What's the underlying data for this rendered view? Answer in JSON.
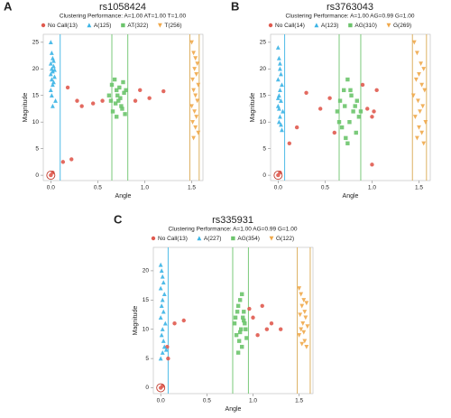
{
  "chart_data": [
    {
      "type": "scatter",
      "panel_label": "A",
      "title": "rs1058424",
      "subtitle": "Clustering Performance: A=1.00 AT=1.00 T=1.00",
      "x_label": "Angle",
      "y_label": "Magnitude",
      "xlim": [
        -0.08,
        1.62
      ],
      "ylim": [
        -1,
        26.5
      ],
      "xticks": [
        {
          "value": 0,
          "label": "0.0"
        },
        {
          "value": 0.5,
          "label": "0.5"
        },
        {
          "value": 1,
          "label": "1.0"
        },
        {
          "value": 1.5,
          "label": "1.5"
        }
      ],
      "yticks": [
        0,
        5,
        10,
        15,
        20,
        25
      ],
      "highlight": {
        "x": 0,
        "y": 0
      },
      "boundaries": [
        {
          "x": 0.1,
          "color": "#3bb4e5"
        },
        {
          "x": 0.65,
          "color": "#6cc46c"
        },
        {
          "x": 0.82,
          "color": "#6cc46c"
        },
        {
          "x": 1.48,
          "color": "#d9a850"
        },
        {
          "x": 1.58,
          "color": "#d9a850"
        }
      ],
      "series": [
        {
          "name": "No Call(13)",
          "color": "#e05a4f",
          "marker": "circle",
          "x": [
            0,
            0.02,
            0.13,
            0.18,
            0.22,
            0.28,
            0.33,
            0.45,
            0.55,
            0.95,
            1.05,
            1.2,
            0.9
          ],
          "y": [
            0,
            0.5,
            2.5,
            16.5,
            3,
            14,
            13,
            13.5,
            14,
            16,
            14.5,
            15.8,
            14
          ]
        },
        {
          "name": "A(125)",
          "color": "#3bb4e5",
          "marker": "triangle-up",
          "x": [
            0,
            0.01,
            0.02,
            0,
            0.03,
            0.01,
            0.02,
            0,
            0.04,
            0.01,
            0.03,
            0.02,
            0,
            0.01,
            0.05,
            0.02,
            0.03,
            0.04
          ],
          "y": [
            25,
            23,
            22,
            21,
            20.5,
            20,
            19.5,
            19,
            18.5,
            18,
            17.5,
            17,
            16,
            15,
            14,
            13,
            21.5,
            19.8
          ]
        },
        {
          "name": "AT(322)",
          "color": "#6cc46c",
          "marker": "square",
          "x": [
            0.62,
            0.65,
            0.68,
            0.7,
            0.72,
            0.75,
            0.78,
            0.8,
            0.66,
            0.7,
            0.74,
            0.77,
            0.69,
            0.73,
            0.76,
            0.64,
            0.71,
            0.79
          ],
          "y": [
            15,
            17,
            18,
            16,
            14,
            13,
            15.5,
            16,
            12,
            11,
            14.5,
            17.5,
            13.5,
            16.5,
            12.5,
            14,
            15,
            11.5
          ]
        },
        {
          "name": "T(256)",
          "color": "#f0a84a",
          "marker": "triangle-down",
          "x": [
            1.5,
            1.52,
            1.54,
            1.56,
            1.53,
            1.55,
            1.51,
            1.57,
            1.52,
            1.54,
            1.56,
            1.5,
            1.53,
            1.55,
            1.51,
            1.54,
            1.57,
            1.52
          ],
          "y": [
            25,
            23,
            22,
            21,
            20,
            19,
            18,
            17,
            16,
            15,
            14,
            13,
            12,
            11,
            10,
            9,
            8,
            7
          ]
        }
      ]
    },
    {
      "type": "scatter",
      "panel_label": "B",
      "title": "rs3763043",
      "subtitle": "Clustering Performance: A=1.00 AG=0.99 G=1.00",
      "x_label": "Angle",
      "y_label": "Magnitude",
      "xlim": [
        -0.08,
        1.62
      ],
      "ylim": [
        -1,
        26.5
      ],
      "xticks": [
        {
          "value": 0,
          "label": "0.0"
        },
        {
          "value": 0.5,
          "label": "0.5"
        },
        {
          "value": 1,
          "label": "1.0"
        },
        {
          "value": 1.5,
          "label": "1.5"
        }
      ],
      "yticks": [
        0,
        5,
        10,
        15,
        20,
        25
      ],
      "highlight": {
        "x": 0,
        "y": 0
      },
      "boundaries": [
        {
          "x": 0.07,
          "color": "#3bb4e5"
        },
        {
          "x": 0.65,
          "color": "#6cc46c"
        },
        {
          "x": 0.88,
          "color": "#6cc46c"
        },
        {
          "x": 1.43,
          "color": "#d9a850"
        },
        {
          "x": 1.58,
          "color": "#d9a850"
        }
      ],
      "series": [
        {
          "name": "No Call(14)",
          "color": "#e05a4f",
          "marker": "circle",
          "x": [
            0,
            0.12,
            0.3,
            0.45,
            0.55,
            0.95,
            1.0,
            1.02,
            1.05,
            0.9,
            0.2,
            1.0,
            0.6,
            0.02
          ],
          "y": [
            0,
            6,
            15.5,
            12.5,
            14.5,
            12.5,
            2,
            12,
            16,
            17,
            9,
            11,
            8,
            0.5
          ]
        },
        {
          "name": "A(123)",
          "color": "#3bb4e5",
          "marker": "triangle-up",
          "x": [
            0,
            0.01,
            0.02,
            0.03,
            0,
            0.04,
            0.02,
            0.01,
            0.03,
            0,
            0.05,
            0.02,
            0.01,
            0.03,
            0.04,
            0.02,
            0,
            0.01
          ],
          "y": [
            24,
            22,
            20,
            19,
            18,
            17,
            16,
            15,
            14,
            13,
            12,
            11,
            10,
            9.5,
            8.5,
            21,
            14.5,
            12.5
          ]
        },
        {
          "name": "AG(310)",
          "color": "#6cc46c",
          "marker": "square",
          "x": [
            0.63,
            0.66,
            0.7,
            0.74,
            0.78,
            0.82,
            0.86,
            0.68,
            0.72,
            0.76,
            0.8,
            0.84,
            0.65,
            0.71,
            0.77,
            0.83,
            0.88,
            0.74
          ],
          "y": [
            12,
            14,
            16,
            18,
            15,
            13,
            11,
            9,
            7,
            10,
            12,
            14,
            10,
            13,
            16,
            8,
            12,
            6
          ]
        },
        {
          "name": "G(269)",
          "color": "#f0a84a",
          "marker": "triangle-down",
          "x": [
            1.45,
            1.48,
            1.52,
            1.55,
            1.5,
            1.47,
            1.53,
            1.56,
            1.44,
            1.49,
            1.54,
            1.51,
            1.46,
            1.57,
            1.5,
            1.53,
            1.48,
            1.55
          ],
          "y": [
            25,
            23,
            21,
            20,
            19,
            18,
            17,
            16,
            15,
            14,
            13,
            12,
            11,
            10,
            9,
            8,
            7,
            6
          ]
        }
      ]
    },
    {
      "type": "scatter",
      "panel_label": "C",
      "title": "rs335931",
      "subtitle": "Clustering Performance: A=1.00 AG=0.99 G=1.00",
      "x_label": "Angle",
      "y_label": "Magnitude",
      "xlim": [
        -0.08,
        1.65
      ],
      "ylim": [
        -1,
        24
      ],
      "xticks": [
        {
          "value": 0,
          "label": "0.0"
        },
        {
          "value": 0.5,
          "label": "0.5"
        },
        {
          "value": 1,
          "label": "1.0"
        },
        {
          "value": 1.5,
          "label": "1.5"
        }
      ],
      "yticks": [
        0,
        5,
        10,
        15,
        20
      ],
      "highlight": {
        "x": 0,
        "y": 0
      },
      "boundaries": [
        {
          "x": 0.08,
          "color": "#3bb4e5"
        },
        {
          "x": 0.78,
          "color": "#6cc46c"
        },
        {
          "x": 0.95,
          "color": "#6cc46c"
        },
        {
          "x": 1.48,
          "color": "#d9a850"
        },
        {
          "x": 1.62,
          "color": "#d9a850"
        }
      ],
      "series": [
        {
          "name": "No Call(13)",
          "color": "#e05a4f",
          "marker": "circle",
          "x": [
            0,
            0.08,
            0.15,
            0.25,
            1.0,
            1.1,
            1.15,
            1.2,
            1.3,
            1.05,
            0.07,
            0.02,
            0.96
          ],
          "y": [
            0,
            5,
            11,
            11.5,
            12,
            14,
            10,
            11,
            10,
            9,
            7,
            0.3,
            13.5
          ]
        },
        {
          "name": "A(227)",
          "color": "#3bb4e5",
          "marker": "triangle-up",
          "x": [
            0,
            0.01,
            0.02,
            0.03,
            0,
            0.04,
            0.02,
            0.01,
            0.03,
            0,
            0.05,
            0.02,
            0.01,
            0.03,
            0.04,
            0.02,
            0,
            0.06
          ],
          "y": [
            21,
            20,
            19,
            18,
            17,
            16,
            15,
            14,
            13,
            12,
            11,
            10,
            9,
            8,
            7,
            6,
            5,
            6.5
          ]
        },
        {
          "name": "AG(354)",
          "color": "#6cc46c",
          "marker": "square",
          "x": [
            0.8,
            0.83,
            0.86,
            0.89,
            0.92,
            0.82,
            0.85,
            0.88,
            0.91,
            0.84,
            0.87,
            0.9,
            0.81,
            0.86,
            0.93,
            0.88,
            0.84,
            0.9
          ],
          "y": [
            11,
            13,
            15,
            12,
            10,
            9,
            8,
            7,
            11,
            14,
            10,
            13,
            12,
            9.5,
            8.5,
            16,
            6,
            11.5
          ]
        },
        {
          "name": "G(122)",
          "color": "#f0a84a",
          "marker": "triangle-down",
          "x": [
            1.5,
            1.52,
            1.55,
            1.58,
            1.53,
            1.56,
            1.51,
            1.57,
            1.54,
            1.59,
            1.52,
            1.55,
            1.5,
            1.56,
            1.53,
            1.58
          ],
          "y": [
            17,
            16,
            15,
            14.5,
            14,
            13,
            12.5,
            12,
            11,
            10.5,
            10,
            9.5,
            9,
            8,
            7.5,
            7
          ]
        }
      ]
    }
  ]
}
